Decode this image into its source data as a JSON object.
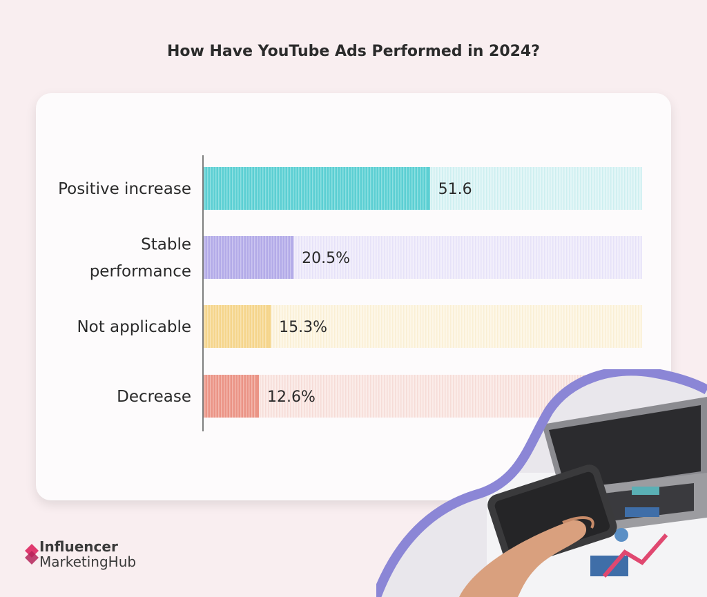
{
  "title": "How Have YouTube Ads Performed in 2024?",
  "chart_data": {
    "type": "bar",
    "orientation": "horizontal",
    "title": "How Have YouTube Ads Performed in 2024?",
    "categories": [
      [
        "Positive increase"
      ],
      [
        "Stable",
        "performance"
      ],
      [
        "Not applicable"
      ],
      [
        "Decrease"
      ]
    ],
    "values": [
      51.6,
      20.5,
      15.3,
      12.6
    ],
    "value_labels": [
      "51.6",
      "20.5%",
      "15.3%",
      "12.6%"
    ],
    "colors": [
      "#5ccfd3",
      "#b3abe8",
      "#f5d58c",
      "#eb9486"
    ],
    "track_colors": [
      "#d8f3f4",
      "#ece8f9",
      "#fbf3df",
      "#f8e3df"
    ],
    "xlim": [
      0,
      100
    ],
    "grid": false,
    "legend": "none"
  },
  "logo": {
    "line1": "Influencer",
    "line2": "MarketingHub",
    "accent": "#e03a6f"
  }
}
